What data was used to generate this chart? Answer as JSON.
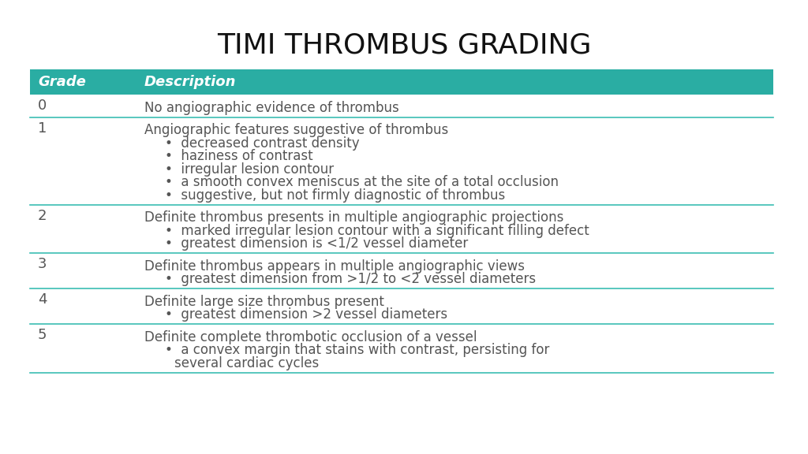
{
  "title": "TIMI THROMBUS GRADING",
  "title_fontsize": 26,
  "header_bg": "#2AADA3",
  "header_text_color": "#FFFFFF",
  "header_labels": [
    "Grade",
    "Description"
  ],
  "row_separator_color": "#3BBDB3",
  "bg_color": "#FFFFFF",
  "text_color": "#555555",
  "rows": [
    {
      "grade": "0",
      "description": "No angiographic evidence of thrombus",
      "bullets": []
    },
    {
      "grade": "1",
      "description": "Angiographic features suggestive of thrombus",
      "bullets": [
        "decreased contrast density",
        "haziness of contrast",
        "irregular lesion contour",
        "a smooth convex meniscus at the site of a total occlusion",
        "suggestive, but not firmly diagnostic of thrombus"
      ]
    },
    {
      "grade": "2",
      "description": "Definite thrombus presents in multiple angiographic projections",
      "bullets": [
        "marked irregular lesion contour with a significant filling defect",
        "greatest dimension is <1/2 vessel diameter"
      ]
    },
    {
      "grade": "3",
      "description": "Definite thrombus appears in multiple angiographic views",
      "bullets": [
        "greatest dimension from >1/2 to <2 vessel diameters"
      ]
    },
    {
      "grade": "4",
      "description": "Definite large size thrombus present",
      "bullets": [
        "greatest dimension >2 vessel diameters"
      ]
    },
    {
      "grade": "5",
      "description": "Definite complete thrombotic occlusion of a vessel",
      "bullets": [
        "a convex margin that stains with contrast, persisting for",
        "    several cardiac cycles"
      ]
    }
  ]
}
